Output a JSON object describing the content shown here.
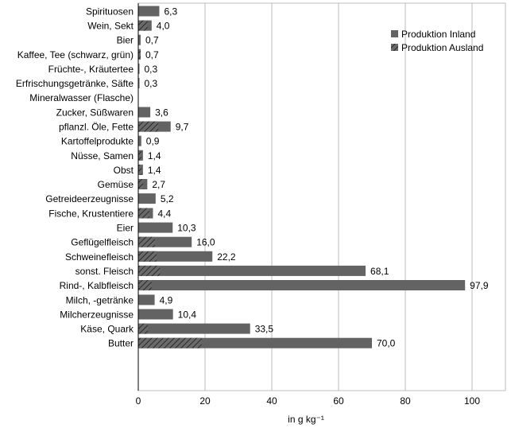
{
  "chart_data": {
    "type": "bar",
    "orientation": "horizontal",
    "stacked": true,
    "xlabel": "in g kg⁻¹",
    "xlim": [
      0,
      110
    ],
    "xticks": [
      0,
      20,
      40,
      60,
      80,
      100
    ],
    "grid": "vertical",
    "legend_position": "top-right",
    "colors": {
      "inland": "#636363",
      "ausland_hatch": "#3a3a3a"
    },
    "series": [
      {
        "name": "Produktion Inland",
        "pattern": "solid"
      },
      {
        "name": "Produktion Ausland",
        "pattern": "hatched"
      }
    ],
    "groups": [
      {
        "items": [
          {
            "label": "Spirituosen",
            "total": 6.3,
            "total_label": "6,3",
            "ausland": 0
          },
          {
            "label": "Wein, Sekt",
            "total": 4.0,
            "total_label": "4,0",
            "ausland": 2.8
          },
          {
            "label": "Bier",
            "total": 0.7,
            "total_label": "0,7",
            "ausland": 0
          },
          {
            "label": "Kaffee, Tee (schwarz, grün)",
            "total": 0.7,
            "total_label": "0,7",
            "ausland": 0.7
          },
          {
            "label": "Früchte-, Kräutertee",
            "total": 0.3,
            "total_label": "0,3",
            "ausland": 0
          },
          {
            "label": "Erfrischungsgetränke, Säfte",
            "total": 0.3,
            "total_label": "0,3",
            "ausland": 0
          },
          {
            "label": "Mineralwasser (Flasche)",
            "total": 0,
            "total_label": "",
            "ausland": 0
          }
        ]
      },
      {
        "items": [
          {
            "label": "Zucker, Süßwaren",
            "total": 3.6,
            "total_label": "3,6",
            "ausland": 0
          },
          {
            "label": "pflanzl. Öle, Fette",
            "total": 9.7,
            "total_label": "9,7",
            "ausland": 6.0
          },
          {
            "label": "Kartoffelprodukte",
            "total": 0.9,
            "total_label": "0,9",
            "ausland": 0
          },
          {
            "label": "Nüsse, Samen",
            "total": 1.4,
            "total_label": "1,4",
            "ausland": 1.0
          },
          {
            "label": "Obst",
            "total": 1.4,
            "total_label": "1,4",
            "ausland": 1.0
          },
          {
            "label": "Gemüse",
            "total": 2.7,
            "total_label": "2,7",
            "ausland": 1.5
          },
          {
            "label": "Getreideerzeugnisse",
            "total": 5.2,
            "total_label": "5,2",
            "ausland": 0
          }
        ]
      },
      {
        "items": [
          {
            "label": "Fische, Krustentiere",
            "total": 4.4,
            "total_label": "4,4",
            "ausland": 3.3
          },
          {
            "label": "Eier",
            "total": 10.3,
            "total_label": "10,3",
            "ausland": 0
          },
          {
            "label": "Geflügelfleisch",
            "total": 16.0,
            "total_label": "16,0",
            "ausland": 5.0
          },
          {
            "label": "Schweinefleisch",
            "total": 22.2,
            "total_label": "22,2",
            "ausland": 5.5
          },
          {
            "label": "sonst. Fleisch",
            "total": 68.1,
            "total_label": "68,1",
            "ausland": 6.5
          },
          {
            "label": "Rind-, Kalbfleisch",
            "total": 97.9,
            "total_label": "97,9",
            "ausland": 4.0
          }
        ]
      },
      {
        "items": [
          {
            "label": "Milch, -getränke",
            "total": 4.9,
            "total_label": "4,9",
            "ausland": 0
          },
          {
            "label": "Milcherzeugnisse",
            "total": 10.4,
            "total_label": "10,4",
            "ausland": 0
          },
          {
            "label": "Käse, Quark",
            "total": 33.5,
            "total_label": "33,5",
            "ausland": 2.8
          },
          {
            "label": "Butter",
            "total": 70.0,
            "total_label": "70,0",
            "ausland": 19.0
          }
        ]
      }
    ]
  }
}
